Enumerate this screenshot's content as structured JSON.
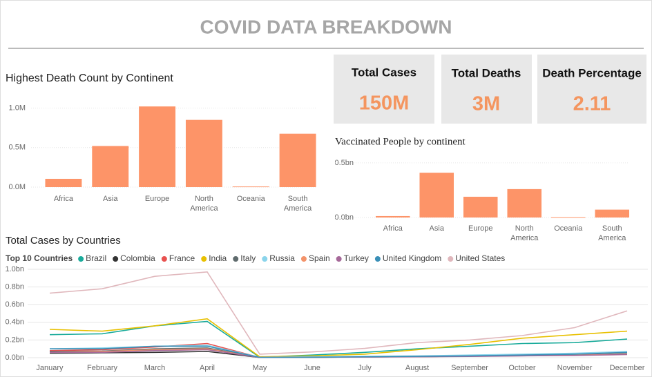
{
  "header": {
    "title": "COVID DATA BREAKDOWN"
  },
  "cards": [
    {
      "label": "Total Cases",
      "value": "150M"
    },
    {
      "label": "Total Deaths",
      "value": "3M"
    },
    {
      "label": "Death Percentage",
      "value": "2.11"
    }
  ],
  "chart_data": [
    {
      "type": "bar",
      "title": "Highest Death Count by Continent",
      "categories": [
        "Africa",
        "Asia",
        "Europe",
        "North America",
        "Oceania",
        "South America"
      ],
      "values": [
        0.105,
        0.52,
        1.02,
        0.85,
        0.008,
        0.675
      ],
      "color": "#fd9468",
      "ylim": [
        0,
        1.1
      ],
      "yticks": [
        {
          "value": 0,
          "label": "0.0M"
        },
        {
          "value": 0.5,
          "label": "0.5M"
        },
        {
          "value": 1.0,
          "label": "1.0M"
        }
      ],
      "grid": true
    },
    {
      "type": "bar",
      "title": "Vaccinated People by continent",
      "categories": [
        "Africa",
        "Asia",
        "Europe",
        "North America",
        "Oceania",
        "South America"
      ],
      "values": [
        0.013,
        0.41,
        0.19,
        0.26,
        0.003,
        0.072
      ],
      "color": "#fd9468",
      "ylim": [
        0,
        0.55
      ],
      "yticks": [
        {
          "value": 0,
          "label": "0.0bn"
        },
        {
          "value": 0.5,
          "label": "0.5bn"
        }
      ],
      "grid": true
    },
    {
      "type": "line",
      "title": "Total Cases by Countries",
      "legend_title": "Top 10 Countries",
      "categories": [
        "January",
        "February",
        "March",
        "April",
        "May",
        "June",
        "July",
        "August",
        "September",
        "October",
        "November",
        "December"
      ],
      "ylim": [
        0,
        1.0
      ],
      "yticks": [
        {
          "value": 0,
          "label": "0.0bn"
        },
        {
          "value": 0.2,
          "label": "0.2bn"
        },
        {
          "value": 0.4,
          "label": "0.4bn"
        },
        {
          "value": 0.6,
          "label": "0.6bn"
        },
        {
          "value": 0.8,
          "label": "0.8bn"
        },
        {
          "value": 1.0,
          "label": "1.0bn"
        }
      ],
      "grid": true,
      "series": [
        {
          "name": "Brazil",
          "color": "#1aab9b",
          "values": [
            0.26,
            0.27,
            0.36,
            0.41,
            0.005,
            0.03,
            0.06,
            0.1,
            0.13,
            0.16,
            0.17,
            0.21
          ]
        },
        {
          "name": "Colombia",
          "color": "#333333",
          "values": [
            0.05,
            0.055,
            0.06,
            0.07,
            0.002,
            0.004,
            0.008,
            0.012,
            0.018,
            0.025,
            0.03,
            0.04
          ]
        },
        {
          "name": "France",
          "color": "#e8514f",
          "values": [
            0.08,
            0.09,
            0.12,
            0.16,
            0.002,
            0.005,
            0.01,
            0.015,
            0.02,
            0.025,
            0.03,
            0.04
          ]
        },
        {
          "name": "India",
          "color": "#e8c000",
          "values": [
            0.32,
            0.3,
            0.36,
            0.44,
            0.01,
            0.02,
            0.04,
            0.09,
            0.15,
            0.22,
            0.26,
            0.3
          ]
        },
        {
          "name": "Italy",
          "color": "#5f6b6d",
          "values": [
            0.07,
            0.075,
            0.1,
            0.11,
            0.002,
            0.004,
            0.008,
            0.012,
            0.018,
            0.024,
            0.03,
            0.045
          ]
        },
        {
          "name": "Russia",
          "color": "#8ad4eb",
          "values": [
            0.1,
            0.11,
            0.13,
            0.14,
            0.005,
            0.01,
            0.015,
            0.02,
            0.03,
            0.04,
            0.05,
            0.07
          ]
        },
        {
          "name": "Spain",
          "color": "#f3936a",
          "values": [
            0.06,
            0.07,
            0.09,
            0.1,
            0.002,
            0.004,
            0.008,
            0.012,
            0.016,
            0.022,
            0.028,
            0.04
          ]
        },
        {
          "name": "Turkey",
          "color": "#a66999",
          "values": [
            0.06,
            0.06,
            0.08,
            0.09,
            0.002,
            0.004,
            0.007,
            0.01,
            0.014,
            0.02,
            0.025,
            0.035
          ]
        },
        {
          "name": "United Kingdom",
          "color": "#3a8fb7",
          "values": [
            0.1,
            0.1,
            0.13,
            0.13,
            0.003,
            0.005,
            0.01,
            0.015,
            0.02,
            0.03,
            0.04,
            0.06
          ]
        },
        {
          "name": "United States",
          "color": "#e0b7bc",
          "values": [
            0.73,
            0.78,
            0.92,
            0.97,
            0.04,
            0.065,
            0.105,
            0.17,
            0.2,
            0.25,
            0.34,
            0.53
          ]
        }
      ]
    }
  ]
}
